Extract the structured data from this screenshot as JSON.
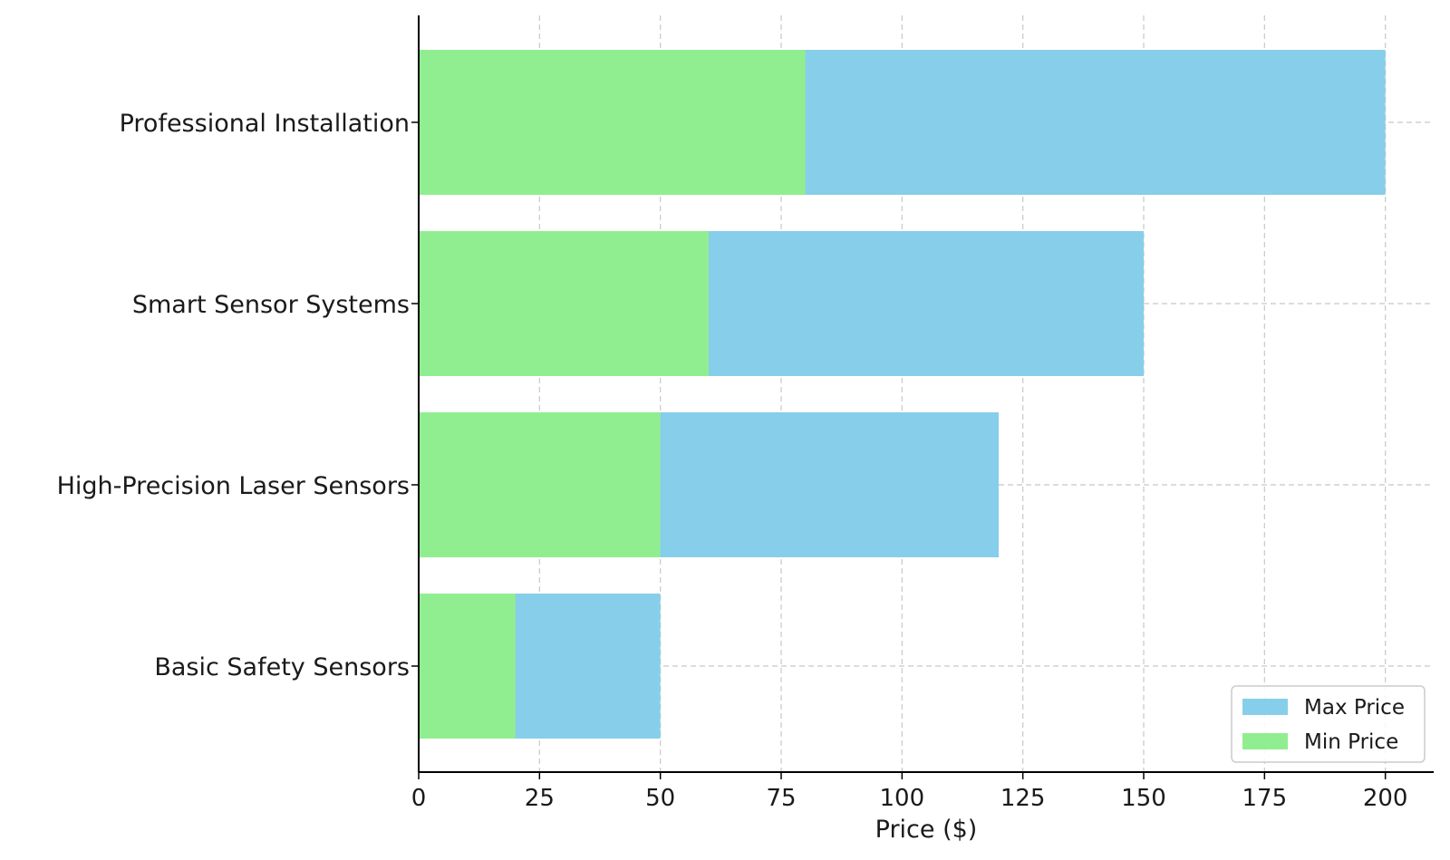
{
  "chart_data": {
    "type": "bar",
    "orientation": "horizontal",
    "categories": [
      "Basic Safety Sensors",
      "High-Precision Laser Sensors",
      "Smart Sensor Systems",
      "Professional Installation"
    ],
    "series": [
      {
        "name": "Max Price",
        "values": [
          50,
          120,
          150,
          200
        ],
        "color": "#87CEEB"
      },
      {
        "name": "Min Price",
        "values": [
          20,
          50,
          60,
          80
        ],
        "color": "#90EE90"
      }
    ],
    "xlabel": "Price ($)",
    "ylabel": "",
    "title": "",
    "xlim": [
      0,
      210
    ],
    "xticks": [
      "0",
      "25",
      "50",
      "75",
      "100",
      "125",
      "150",
      "175",
      "200"
    ],
    "grid": true,
    "legend_position": "lower-right"
  }
}
